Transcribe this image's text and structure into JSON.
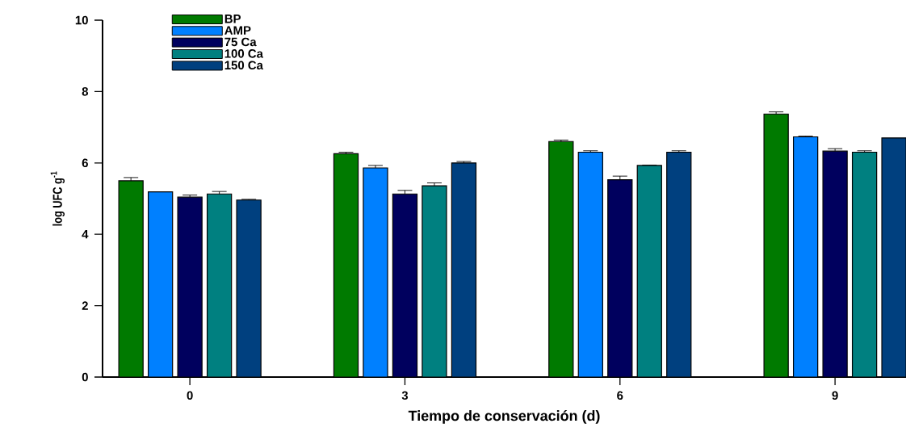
{
  "chart_data": {
    "type": "bar",
    "xlabel": "Tiempo de conservación (d)",
    "ylabel": "log UFC g$^{-1}$",
    "categories": [
      "0",
      "3",
      "6",
      "9"
    ],
    "series": [
      {
        "name": "BP",
        "color": "#007a00",
        "values": [
          5.5,
          6.26,
          6.6,
          7.37
        ],
        "errors": [
          0.09,
          0.04,
          0.04,
          0.06
        ]
      },
      {
        "name": "AMP",
        "color": "#0080ff",
        "values": [
          5.19,
          5.86,
          6.3,
          6.73
        ],
        "errors": [
          null,
          0.07,
          0.04,
          0.02
        ]
      },
      {
        "name": "75  Ca",
        "color": "#00005e",
        "values": [
          5.04,
          5.13,
          5.53,
          6.33
        ],
        "errors": [
          0.06,
          0.1,
          0.1,
          0.07
        ]
      },
      {
        "name": "100 Ca",
        "color": "#008080",
        "values": [
          5.13,
          5.36,
          5.93,
          6.3
        ],
        "errors": [
          0.07,
          0.08,
          0.01,
          0.04
        ]
      },
      {
        "name": "150 Ca",
        "color": "#00407f",
        "values": [
          4.96,
          6.0,
          6.3,
          6.7
        ],
        "errors": [
          0.02,
          0.04,
          0.04,
          null
        ]
      }
    ],
    "ylim": [
      0,
      10
    ],
    "yticks": [
      0,
      2,
      4,
      6,
      8,
      10
    ],
    "grid": false,
    "legend": "top left"
  }
}
